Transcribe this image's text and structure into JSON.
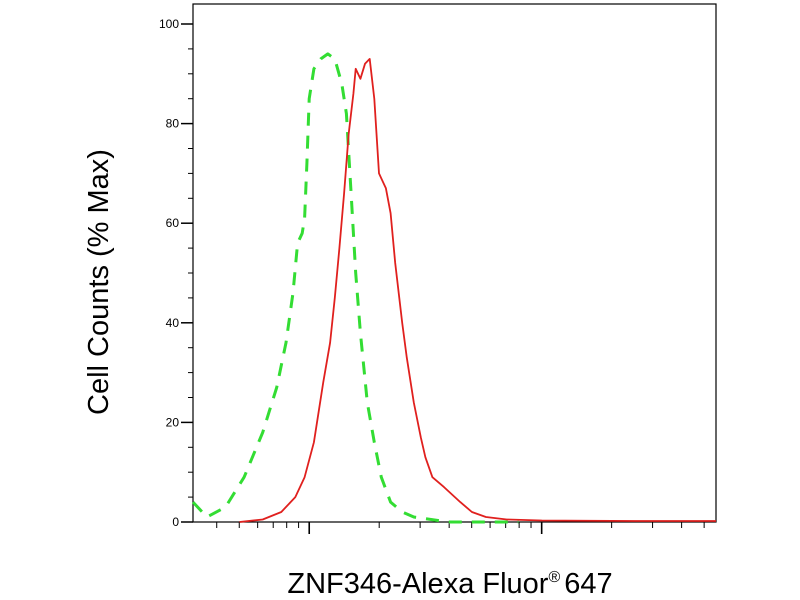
{
  "chart_data": {
    "type": "line",
    "title": "",
    "xlabel": "ZNF346-Alexa Fluor",
    "xlabel_mark": "®",
    "xlabel_suffix": "647",
    "ylabel": "Cell Counts (% Max)",
    "xscale": "log",
    "xlim": [
      -0.5,
      1.75
    ],
    "ylim": [
      0,
      100
    ],
    "yticks": [
      0,
      20,
      40,
      60,
      80,
      100
    ],
    "ytick_labels": [
      "0",
      "20",
      "40",
      "60",
      "80",
      "100"
    ],
    "xtick_labels": [],
    "grid": false,
    "legend": "none",
    "series": [
      {
        "style": "dashed",
        "color": "#33dd33",
        "points": [
          [
            -0.5,
            4
          ],
          [
            -0.44,
            1
          ],
          [
            -0.36,
            3
          ],
          [
            -0.28,
            9
          ],
          [
            -0.2,
            18
          ],
          [
            -0.14,
            27
          ],
          [
            -0.1,
            36
          ],
          [
            -0.07,
            46
          ],
          [
            -0.05,
            56
          ],
          [
            -0.03,
            58
          ],
          [
            -0.02,
            61
          ],
          [
            -0.01,
            72
          ],
          [
            0.0,
            85
          ],
          [
            0.02,
            91
          ],
          [
            0.05,
            93
          ],
          [
            0.08,
            94
          ],
          [
            0.11,
            93
          ],
          [
            0.14,
            88
          ],
          [
            0.16,
            82
          ],
          [
            0.18,
            66
          ],
          [
            0.2,
            50
          ],
          [
            0.22,
            38
          ],
          [
            0.25,
            24
          ],
          [
            0.28,
            16
          ],
          [
            0.31,
            9
          ],
          [
            0.35,
            4
          ],
          [
            0.4,
            2
          ],
          [
            0.45,
            1
          ],
          [
            0.6,
            0
          ],
          [
            0.9,
            0
          ]
        ]
      },
      {
        "style": "solid",
        "color": "#e0201e",
        "points": [
          [
            -0.3,
            0
          ],
          [
            -0.2,
            0.5
          ],
          [
            -0.12,
            2
          ],
          [
            -0.06,
            5
          ],
          [
            -0.02,
            9
          ],
          [
            0.02,
            16
          ],
          [
            0.06,
            28
          ],
          [
            0.09,
            36
          ],
          [
            0.11,
            45
          ],
          [
            0.13,
            55
          ],
          [
            0.15,
            66
          ],
          [
            0.17,
            78
          ],
          [
            0.19,
            86
          ],
          [
            0.2,
            91
          ],
          [
            0.22,
            89
          ],
          [
            0.24,
            92
          ],
          [
            0.26,
            93
          ],
          [
            0.28,
            85
          ],
          [
            0.3,
            70
          ],
          [
            0.33,
            67
          ],
          [
            0.35,
            62
          ],
          [
            0.37,
            52
          ],
          [
            0.4,
            40
          ],
          [
            0.42,
            33
          ],
          [
            0.45,
            24
          ],
          [
            0.48,
            17
          ],
          [
            0.5,
            13
          ],
          [
            0.53,
            9
          ],
          [
            0.58,
            7
          ],
          [
            0.65,
            4
          ],
          [
            0.7,
            2
          ],
          [
            0.76,
            1
          ],
          [
            0.85,
            0.5
          ],
          [
            1.0,
            0.3
          ],
          [
            1.4,
            0.2
          ],
          [
            1.75,
            0.2
          ]
        ]
      }
    ]
  }
}
